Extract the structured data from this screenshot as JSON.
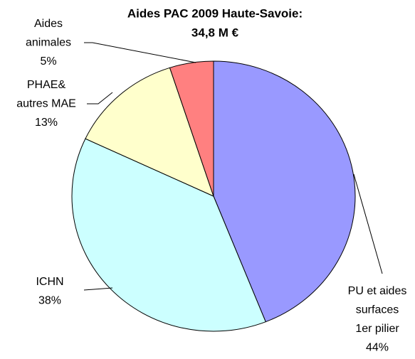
{
  "chart_data": {
    "type": "pie",
    "title": "Aides PAC 2009 Haute-Savoie:",
    "subtitle": "34,8 M €",
    "categories": [
      [
        "PU et aides",
        "surfaces",
        "1er pilier"
      ],
      [
        "ICHN"
      ],
      [
        "PHAE&",
        "autres MAE"
      ],
      [
        "Aides",
        "animales"
      ]
    ],
    "values": [
      44,
      38,
      13,
      5
    ],
    "value_labels": [
      "44%",
      "38%",
      "13%",
      "5%"
    ],
    "colors": [
      "#9999ff",
      "#ccffff",
      "#ffffcc",
      "#ff8080"
    ]
  }
}
